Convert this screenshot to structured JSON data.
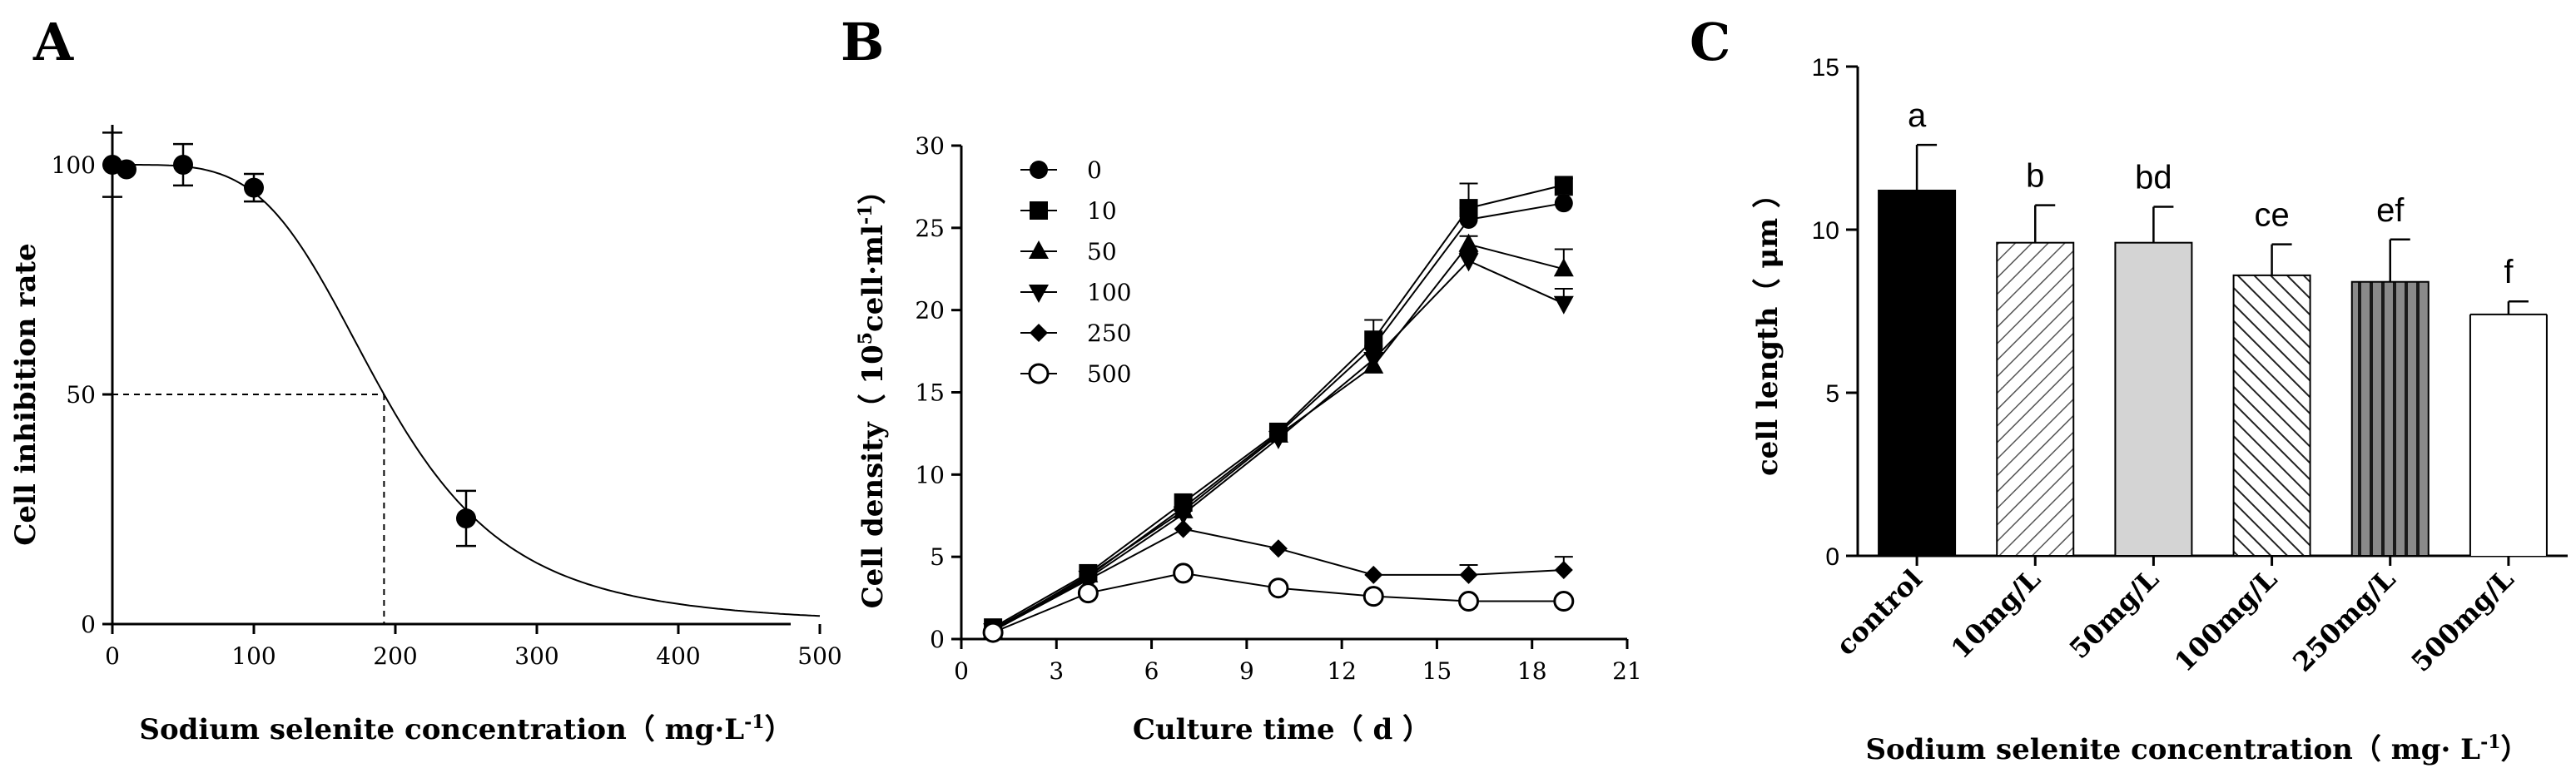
{
  "chart_data": [
    {
      "panel": "A",
      "type": "scatter",
      "xlabel": "Sodium selenite concentration（ mg·L",
      "xlabel_sup": "-1",
      "xlabel_end": "）",
      "ylabel": "Cell inhibition rate",
      "xlim": [
        0,
        500
      ],
      "ylim": [
        0,
        100
      ],
      "xticks": [
        "0",
        "100",
        "200",
        "300",
        "400",
        "500"
      ],
      "yticks": [
        "0",
        "50",
        "100"
      ],
      "points": [
        {
          "x": 0,
          "y": 100,
          "err": 7
        },
        {
          "x": 10,
          "y": 99,
          "err": 0
        },
        {
          "x": 50,
          "y": 100,
          "err": 4.5
        },
        {
          "x": 100,
          "y": 95,
          "err": 3
        },
        {
          "x": 250,
          "y": 23,
          "err": 6
        }
      ],
      "fit": {
        "ic50": 192,
        "hill": 4.2
      },
      "ic50_line": {
        "x": 192,
        "y": 50
      }
    },
    {
      "panel": "B",
      "type": "line",
      "xlabel": "Culture time（  d ）",
      "ylabel_pre": "Cell density（ 10",
      "ylabel_sup": "5",
      "ylabel_mid": "cell·ml",
      "ylabel_sup2": "-1",
      "ylabel_end": "）",
      "xlim": [
        0,
        21
      ],
      "ylim": [
        0,
        30
      ],
      "xticks": [
        "0",
        "3",
        "6",
        "9",
        "12",
        "15",
        "18",
        "21"
      ],
      "yticks": [
        "0",
        "5",
        "10",
        "15",
        "20",
        "25",
        "30"
      ],
      "x": [
        1,
        4,
        7,
        10,
        13,
        16,
        19
      ],
      "series": [
        {
          "name": "0",
          "marker": "circle",
          "values": [
            0.6,
            3.8,
            8.0,
            12.5,
            17.8,
            25.5,
            26.5
          ],
          "err": [
            0,
            0,
            0,
            0,
            0,
            0.7,
            0.5
          ]
        },
        {
          "name": "10",
          "marker": "square",
          "values": [
            0.7,
            4.0,
            8.3,
            12.6,
            18.2,
            26.2,
            27.6
          ],
          "err": [
            0,
            0,
            0,
            0,
            1.2,
            1.5,
            0.4
          ]
        },
        {
          "name": "50",
          "marker": "triangle-up",
          "values": [
            0.5,
            3.9,
            7.8,
            12.4,
            16.6,
            24.0,
            22.5
          ],
          "err": [
            0,
            0,
            0,
            0,
            0,
            0.5,
            1.2
          ]
        },
        {
          "name": "100",
          "marker": "triangle-down",
          "values": [
            0.5,
            3.7,
            7.6,
            12.2,
            17.0,
            23.0,
            20.4
          ],
          "err": [
            0,
            0,
            0,
            0,
            0,
            0.5,
            0.9
          ]
        },
        {
          "name": "250",
          "marker": "diamond",
          "values": [
            0.5,
            3.6,
            6.7,
            5.5,
            3.9,
            3.9,
            4.2
          ],
          "err": [
            0,
            0,
            0,
            0,
            0,
            0.6,
            0.8
          ]
        },
        {
          "name": "500",
          "marker": "circle-open",
          "values": [
            0.4,
            2.8,
            4.0,
            3.1,
            2.6,
            2.3,
            2.3
          ],
          "err": [
            0,
            0,
            0,
            0,
            0,
            0,
            0
          ]
        }
      ]
    },
    {
      "panel": "C",
      "type": "bar",
      "xlabel": "Sodium selenite concentration（ mg· L",
      "xlabel_sup": "-1",
      "xlabel_end": "）",
      "ylabel": "cell length（ μm ）",
      "ylim": [
        0,
        15
      ],
      "yticks": [
        "0",
        "5",
        "10",
        "15"
      ],
      "categories": [
        "control",
        "10mg/L",
        "50mg/L",
        "100mg/L",
        "250mg/L",
        "500mg/L"
      ],
      "values": [
        11.2,
        9.6,
        9.6,
        8.6,
        8.4,
        7.4
      ],
      "errors": [
        1.4,
        1.15,
        1.1,
        0.95,
        1.3,
        0.4
      ],
      "letters": [
        "a",
        "b",
        "bd",
        "ce",
        "ef",
        "f"
      ],
      "styles": [
        "solid-black",
        "hatch-fwd",
        "solid-lightgray",
        "hatch-back",
        "vertical-stripes",
        "white"
      ]
    }
  ],
  "panel_letters": [
    "A",
    "B",
    "C"
  ]
}
